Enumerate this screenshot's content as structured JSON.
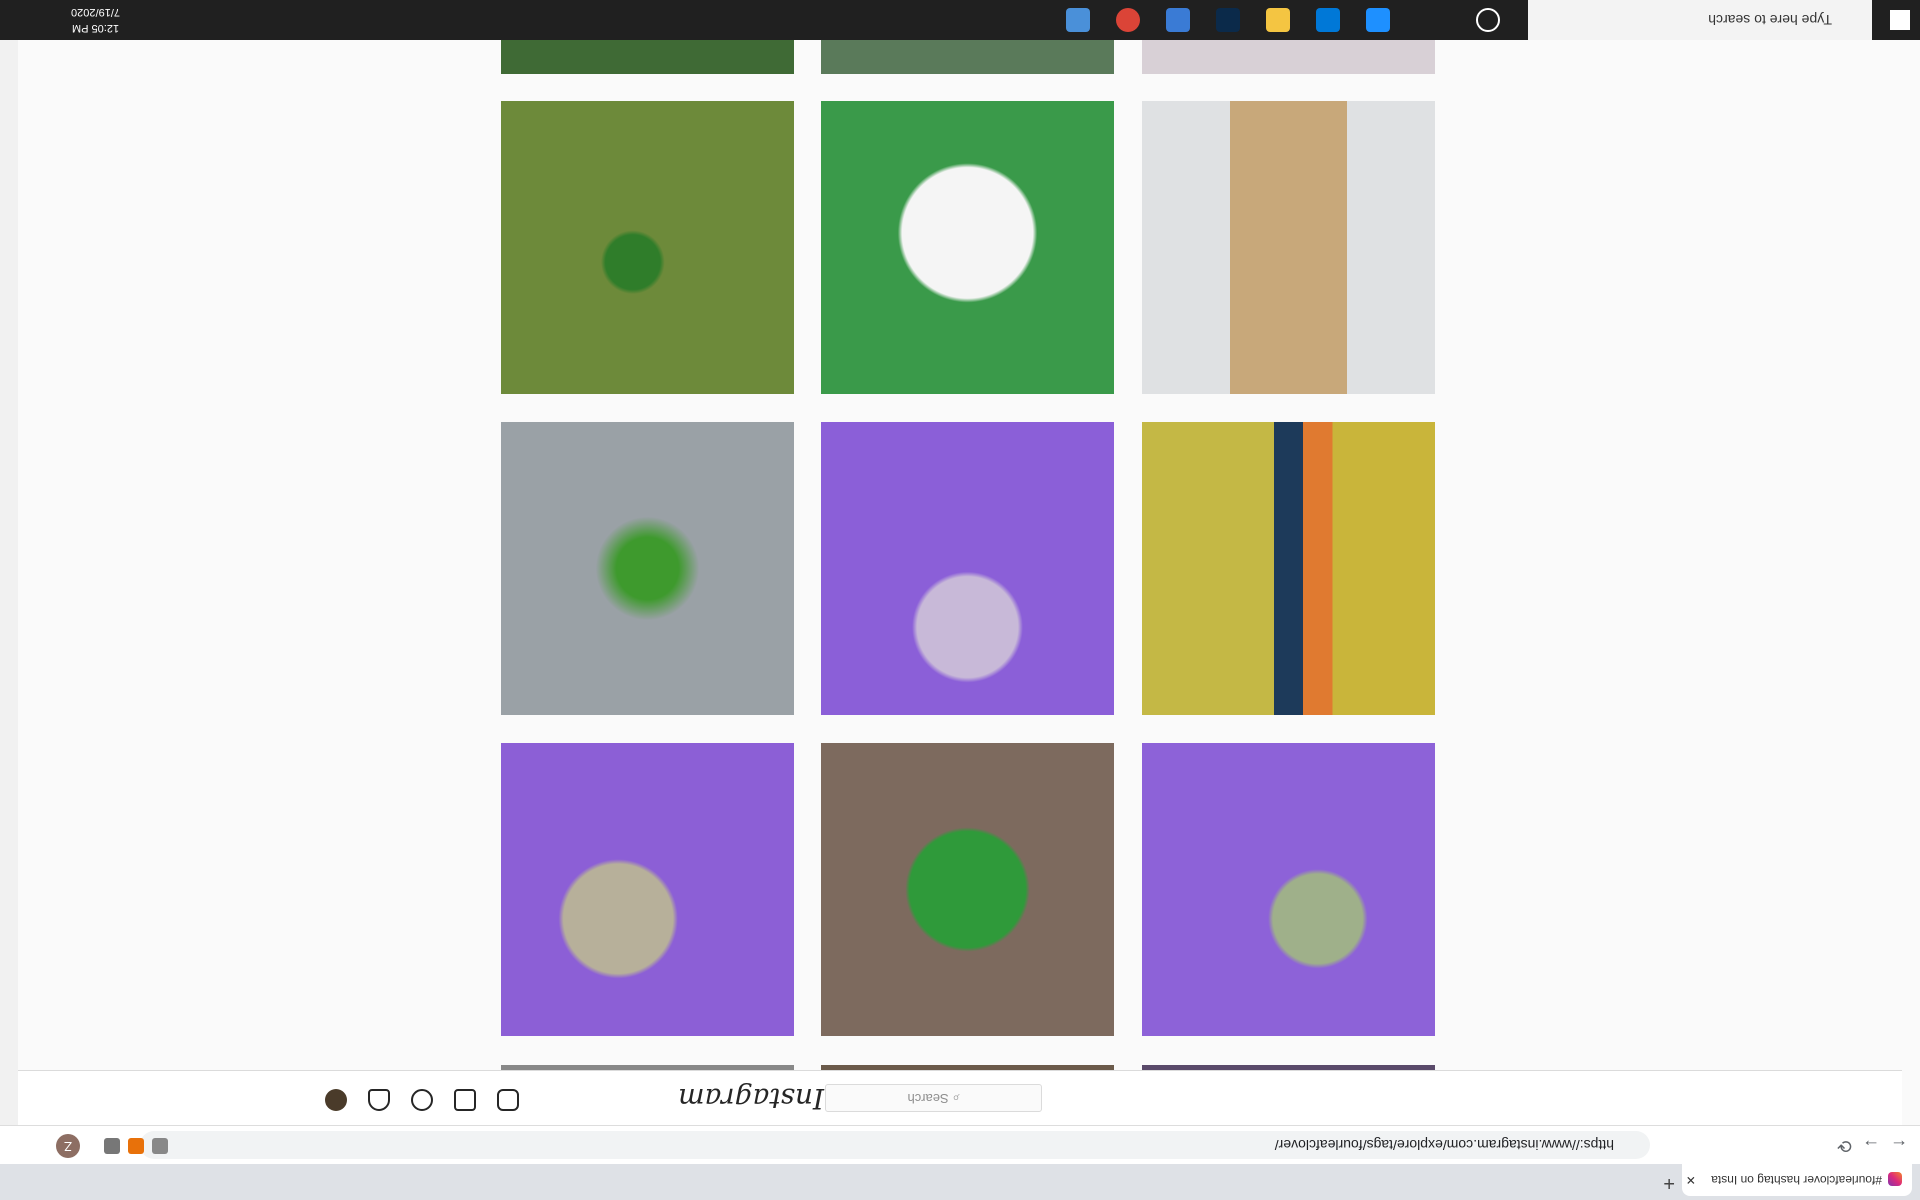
{
  "browser": {
    "tab_title": "#fourleafclover hashtag on Insta",
    "url": "https://www.instagram.com/explore/tags/fourleafclover/",
    "profile": "Z"
  },
  "instagram": {
    "logo": "Instagram",
    "search_placeholder": "Search"
  },
  "taskbar": {
    "search": "Type here to search",
    "time": "12:05 PM",
    "date": "7/19/2020"
  }
}
